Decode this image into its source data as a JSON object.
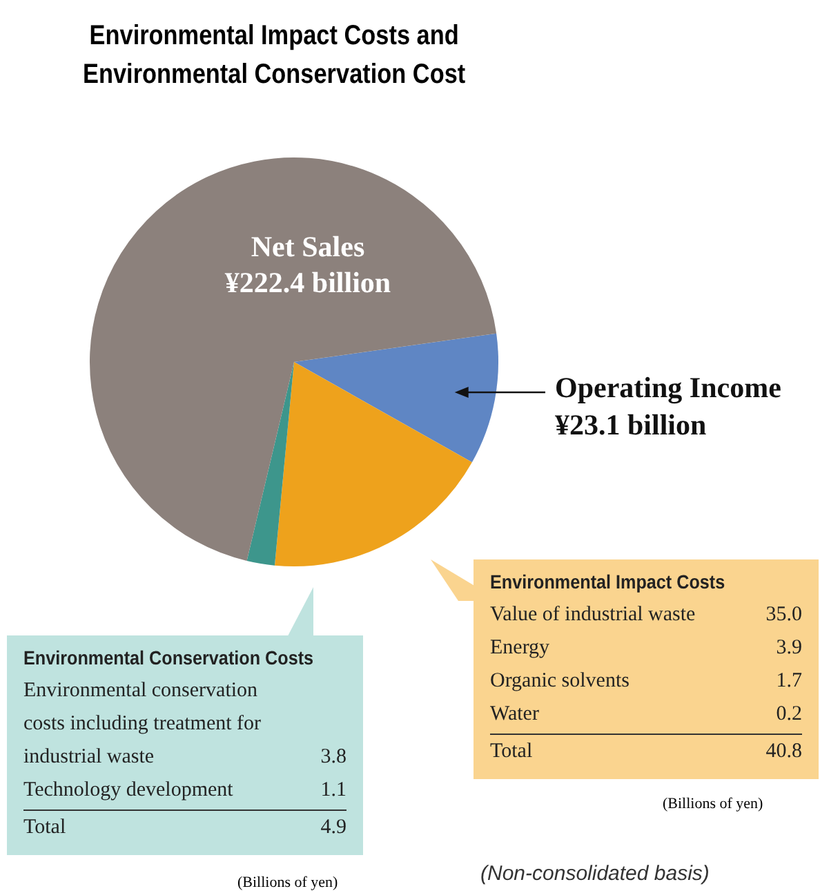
{
  "chart_data": {
    "type": "pie",
    "title": "Environmental Impact Costs and\nEnvironmental Conservation Cost",
    "categories": [
      "Operating Income",
      null,
      null,
      null
    ],
    "values": [
      23.1,
      40.8,
      4.9,
      153.6
    ],
    "colors": [
      "#5f86c4",
      "#eea21c",
      "#3d968c",
      "#8c817c"
    ],
    "value_labels": [
      "¥23.1 billion",
      null,
      null,
      null
    ],
    "annotations": [
      "Value of industrial waste",
      "35.0",
      "Energy",
      "3.9",
      "Organic solvents",
      "1.7",
      "Water",
      "0.2",
      "Total",
      "(Billions of yen)",
      "Environmental conservation costs including treatment for industrial waste",
      "3.8",
      "Technology development",
      "1.1",
      "Total",
      "(Billions of yen)",
      "(Non-consolidated basis)",
      "Environmental Impact Costs",
      "40.8",
      "Environmental Conservation Costs",
      "4.9",
      "Net Sales",
      "¥222.4 billion"
    ],
    "legend": false
  }
}
